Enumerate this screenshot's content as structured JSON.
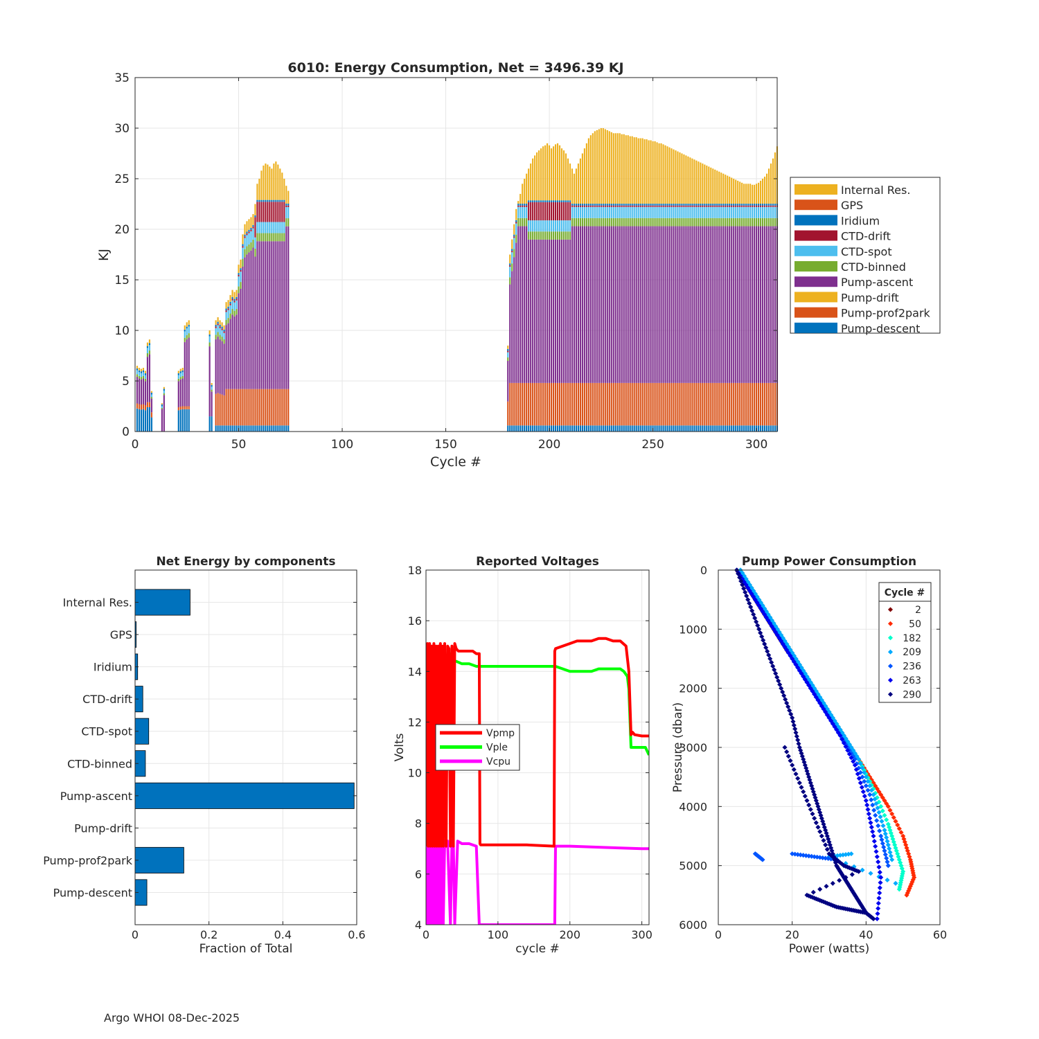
{
  "footer": "Argo WHOI 08-Dec-2025",
  "colors": {
    "internal": "#EDB120",
    "gps": "#D95319",
    "iridium": "#0072BD",
    "ctd_drift": "#A2142F",
    "ctd_spot": "#4DBEEE",
    "ctd_binned": "#77AC30",
    "pump_ascent": "#7E2F8E",
    "pump_drift": "#EDB120",
    "prof2park": "#D95319",
    "descent": "#0072BD",
    "vpmp": "#FF0000",
    "vple": "#00FF00",
    "vcpu": "#FF00FF"
  },
  "chart_data": [
    {
      "id": "energy",
      "type": "bar",
      "stacked": true,
      "title": "6010: Energy Consumption,  Net = 3496.39 KJ",
      "xlabel": "Cycle #",
      "ylabel": "KJ",
      "xlim": [
        0,
        310
      ],
      "ylim": [
        0,
        35
      ],
      "xticks": [
        "0",
        "50",
        "100",
        "150",
        "200",
        "250",
        "300"
      ],
      "yticks": [
        "0",
        "5",
        "10",
        "15",
        "20",
        "25",
        "30",
        "35"
      ],
      "grid": true,
      "legend_position": "right",
      "legend": [
        "Internal Res.",
        "GPS",
        "Iridium",
        "CTD-drift",
        "CTD-spot",
        "CTD-binned",
        "Pump-ascent",
        "Pump-drift",
        "Pump-prof2park",
        "Pump-descent"
      ],
      "stack_order": [
        "Pump-descent",
        "Pump-prof2park",
        "Pump-ascent",
        "CTD-binned",
        "CTD-spot",
        "CTD-drift",
        "Iridium",
        "Internal Res."
      ],
      "segments": [
        {
          "start": 1,
          "end": 8,
          "totals": [
            6.5,
            6.3,
            6.2,
            6.3,
            6.0,
            8.8,
            9.1,
            4.0
          ],
          "descent": 2.4,
          "prof2park": 0.5,
          "ctd_drift": 0
        },
        {
          "start": 13,
          "end": 14,
          "totals": [
            2.8,
            4.4
          ],
          "descent": 0,
          "prof2park": 0,
          "ctd_drift": 0
        },
        {
          "start": 21,
          "end": 26,
          "totals": [
            6.0,
            6.2,
            6.3,
            10.5,
            10.8,
            11.0
          ],
          "descent": 2.2,
          "prof2park": 0.3,
          "ctd_drift": 0
        },
        {
          "start": 36,
          "end": 37,
          "totals": [
            10.0,
            4.8
          ],
          "descent": 1.5,
          "prof2park": 0,
          "ctd_drift": 0
        },
        {
          "start": 39,
          "end": 74,
          "totals": [
            11.0,
            11.3,
            11.0,
            10.8,
            10.5,
            12.8,
            13.0,
            13.5,
            14.0,
            13.8,
            14.0,
            16.5,
            17.0,
            19.5,
            20.5,
            20.8,
            21.0,
            21.2,
            21.5,
            22.5,
            24.5,
            25.0,
            25.8,
            26.3,
            26.5,
            26.4,
            26.2,
            26.0,
            26.5,
            26.7,
            26.4,
            26.0,
            25.6,
            25.0,
            24.3,
            23.8
          ],
          "descent": 0.6,
          "prof2park": 3.6,
          "ctd_drift": 2.0
        },
        {
          "start": 180,
          "end": 310,
          "totals": [
            8.5,
            17.5,
            19.0,
            20.5,
            22.0,
            22.8,
            23.5,
            24.5,
            25.0,
            25.5,
            26.0,
            26.5,
            27.0,
            27.3,
            27.6,
            27.8,
            28.0,
            28.2,
            28.3,
            28.5,
            28.3,
            28.0,
            28.2,
            28.4,
            28.5,
            28.3,
            28.0,
            27.8,
            27.5,
            27.0,
            26.5,
            26.0,
            25.5,
            26.0,
            26.5,
            27.0,
            27.5,
            28.0,
            28.5,
            29.0,
            29.3,
            29.5,
            29.7,
            29.8,
            29.9,
            30.0,
            30.0,
            29.9,
            29.8,
            29.7,
            29.6,
            29.5,
            29.5,
            29.5,
            29.5,
            29.4,
            29.4,
            29.3,
            29.3,
            29.2,
            29.2,
            29.1,
            29.1,
            29.0,
            29.0,
            29.0,
            28.9,
            28.9,
            28.8,
            28.8,
            28.7,
            28.7,
            28.6,
            28.5,
            28.5,
            28.4,
            28.3,
            28.2,
            28.1,
            28.0,
            27.9,
            27.8,
            27.7,
            27.6,
            27.5,
            27.4,
            27.3,
            27.2,
            27.1,
            27.0,
            26.9,
            26.8,
            26.7,
            26.6,
            26.5,
            26.4,
            26.3,
            26.2,
            26.1,
            26.0,
            25.9,
            25.8,
            25.7,
            25.6,
            25.5,
            25.4,
            25.3,
            25.2,
            25.1,
            25.0,
            24.9,
            24.8,
            24.7,
            24.6,
            24.5,
            24.5,
            24.5,
            24.5,
            24.4,
            24.4,
            24.5,
            24.6,
            24.8,
            25.0,
            25.2,
            25.5,
            26.0,
            26.5,
            27.0,
            27.6,
            28.2
          ],
          "descent": 0.6,
          "prof2park": 4.2,
          "ctd_drift": 1.8
        }
      ]
    },
    {
      "id": "components",
      "type": "bar",
      "orientation": "horizontal",
      "title": "Net Energy by components",
      "xlabel": "Fraction of Total",
      "xlim": [
        0,
        0.6
      ],
      "xticks": [
        "0",
        "0.2",
        "0.4",
        "0.6"
      ],
      "categories": [
        "Internal Res.",
        "GPS",
        "Iridium",
        "CTD-drift",
        "CTD-spot",
        "CTD-binned",
        "Pump-ascent",
        "Pump-drift",
        "Pump-prof2park",
        "Pump-descent"
      ],
      "values": [
        0.149,
        0.003,
        0.007,
        0.021,
        0.037,
        0.028,
        0.593,
        0.0,
        0.132,
        0.032
      ],
      "grid": true
    },
    {
      "id": "voltages",
      "type": "line",
      "title": "Reported Voltages",
      "xlabel": "cycle #",
      "ylabel": "Volts",
      "xlim": [
        0,
        310
      ],
      "ylim": [
        4,
        18
      ],
      "xticks": [
        "0",
        "100",
        "200",
        "300"
      ],
      "yticks": [
        "4",
        "6",
        "8",
        "10",
        "12",
        "14",
        "16",
        "18"
      ],
      "legend_position": "middle-left",
      "series": [
        {
          "name": "Vpmp",
          "x": [
            0,
            2,
            3,
            5,
            6,
            8,
            9,
            11,
            12,
            14,
            15,
            17,
            18,
            20,
            21,
            23,
            24,
            26,
            28,
            30,
            32,
            34,
            36,
            38,
            40,
            42,
            45,
            50,
            55,
            60,
            65,
            70,
            74,
            75,
            76,
            100,
            140,
            178,
            179,
            180,
            190,
            200,
            210,
            220,
            230,
            240,
            250,
            260,
            270,
            278,
            282,
            285,
            287,
            290,
            300,
            310
          ],
          "y": [
            7.1,
            15.1,
            7.1,
            15.1,
            7.1,
            15.0,
            7.1,
            15.1,
            7.1,
            15.0,
            7.1,
            15.0,
            7.1,
            15.1,
            7.1,
            15.0,
            7.1,
            15.1,
            7.1,
            15.0,
            14.9,
            7.1,
            15.0,
            7.1,
            15.1,
            14.9,
            14.8,
            14.8,
            14.8,
            14.8,
            14.8,
            14.7,
            14.7,
            7.2,
            7.15,
            7.15,
            7.15,
            7.1,
            14.8,
            14.9,
            15.0,
            15.1,
            15.2,
            15.2,
            15.2,
            15.3,
            15.3,
            15.2,
            15.2,
            15.0,
            14.0,
            11.5,
            11.6,
            11.5,
            11.45,
            11.45
          ]
        },
        {
          "name": "Vple",
          "x": [
            3,
            6,
            10,
            14,
            18,
            22,
            24,
            27,
            30,
            33,
            37,
            40,
            42,
            50,
            60,
            70,
            74,
            180,
            190,
            200,
            210,
            220,
            230,
            240,
            250,
            260,
            270,
            275,
            280,
            282,
            285,
            290,
            300,
            305,
            310
          ],
          "y": [
            14.3,
            14.2,
            14.4,
            14.5,
            14.4,
            14.6,
            14.4,
            14.5,
            14.3,
            14.7,
            14.5,
            14.4,
            14.4,
            14.3,
            14.3,
            14.2,
            14.2,
            14.2,
            14.1,
            14.0,
            14.0,
            14.0,
            14.0,
            14.1,
            14.1,
            14.1,
            14.1,
            14.0,
            13.8,
            13.3,
            11.0,
            11.0,
            11.0,
            11.0,
            10.7
          ]
        },
        {
          "name": "Vcpu",
          "x": [
            0,
            2,
            3,
            5,
            6,
            8,
            9,
            11,
            12,
            14,
            15,
            17,
            18,
            20,
            21,
            23,
            24,
            26,
            28,
            30,
            34,
            36,
            38,
            40,
            44,
            50,
            60,
            70,
            74,
            75,
            179,
            180,
            200,
            250,
            300,
            310
          ],
          "y": [
            4.0,
            7.3,
            4.0,
            7.3,
            4.0,
            7.3,
            4.0,
            7.3,
            4.0,
            7.3,
            4.0,
            7.3,
            4.0,
            7.3,
            4.0,
            7.3,
            4.0,
            7.3,
            7.3,
            7.3,
            4.0,
            7.3,
            7.3,
            4.0,
            7.3,
            7.2,
            7.2,
            7.1,
            4.0,
            4.0,
            4.0,
            7.1,
            7.1,
            7.05,
            7.0,
            7.0
          ]
        }
      ]
    },
    {
      "id": "pump_power",
      "type": "scatter",
      "title": "Pump Power Consumption",
      "xlabel": "Power (watts)",
      "ylabel": "Pressure (dbar)",
      "xlim": [
        0,
        60
      ],
      "ylim": [
        0,
        6000
      ],
      "y_reversed": true,
      "xticks": [
        "0",
        "20",
        "40",
        "60"
      ],
      "yticks": [
        "0",
        "1000",
        "2000",
        "3000",
        "4000",
        "5000",
        "6000"
      ],
      "legend_title": "Cycle #",
      "legend_position": "top-right",
      "series": [
        {
          "name": "2",
          "color": "#800000",
          "x": [
            5,
            7,
            9,
            11,
            13,
            15,
            17,
            19
          ],
          "y": [
            0,
            200,
            400,
            600,
            800,
            1000,
            1200,
            1400
          ]
        },
        {
          "name": "50",
          "color": "#FF2A00",
          "x": [
            6,
            10,
            14,
            18,
            22,
            26,
            30,
            34,
            38,
            42,
            46,
            50,
            52,
            53,
            51
          ],
          "y": [
            0,
            400,
            800,
            1200,
            1600,
            2000,
            2400,
            2800,
            3200,
            3600,
            4000,
            4500,
            4900,
            5200,
            5500
          ]
        },
        {
          "name": "182",
          "color": "#00FFCC",
          "x": [
            6,
            10,
            14,
            18,
            22,
            26,
            30,
            34,
            38,
            42,
            46,
            48,
            50,
            49
          ],
          "y": [
            0,
            400,
            800,
            1200,
            1600,
            2000,
            2400,
            2800,
            3200,
            3700,
            4300,
            4700,
            5100,
            5400
          ]
        },
        {
          "name": "209",
          "color": "#00AAFF",
          "x": [
            6,
            10,
            14,
            18,
            22,
            26,
            30,
            34,
            38,
            42,
            45,
            47,
            36,
            30,
            48
          ],
          "y": [
            0,
            400,
            800,
            1200,
            1600,
            2000,
            2400,
            2800,
            3200,
            3800,
            4400,
            4900,
            4800,
            4850,
            5300
          ]
        },
        {
          "name": "236",
          "color": "#0055FF",
          "x": [
            5,
            9,
            13,
            17,
            21,
            25,
            29,
            33,
            37,
            41,
            44,
            46,
            10,
            12,
            20,
            26,
            32
          ],
          "y": [
            0,
            400,
            800,
            1200,
            1600,
            2000,
            2400,
            2800,
            3200,
            3800,
            4500,
            5000,
            4800,
            4900,
            4800,
            4850,
            4900
          ]
        },
        {
          "name": "263",
          "color": "#0000EE",
          "x": [
            5,
            9,
            13,
            17,
            21,
            25,
            29,
            33,
            37,
            40,
            42,
            44,
            43
          ],
          "y": [
            0,
            400,
            800,
            1200,
            1600,
            2000,
            2400,
            2800,
            3300,
            3900,
            4500,
            5200,
            5900
          ]
        },
        {
          "name": "290",
          "color": "#000080",
          "x": [
            5,
            8,
            11,
            14,
            17,
            20,
            22,
            24,
            26,
            28,
            30,
            32,
            34,
            36,
            38,
            40,
            42,
            18,
            22,
            26,
            30,
            34,
            38,
            24,
            28,
            32,
            36,
            40
          ],
          "y": [
            0,
            500,
            1000,
            1500,
            2000,
            2500,
            3000,
            3400,
            3800,
            4200,
            4600,
            5000,
            5200,
            5400,
            5600,
            5800,
            5900,
            3000,
            3600,
            4200,
            4800,
            5000,
            5100,
            5500,
            5600,
            5700,
            5750,
            5800
          ]
        }
      ]
    }
  ]
}
